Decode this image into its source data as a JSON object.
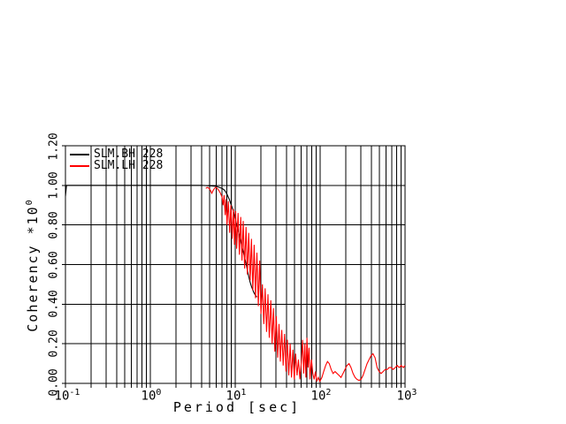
{
  "chart_data": {
    "type": "line",
    "title": "",
    "xlabel": "Period [sec]",
    "ylabel": "Coherency *10^0",
    "ylabel_main": "Coherency *10",
    "ylabel_exp": "0",
    "x_scale": "log",
    "xlim": [
      0.1,
      1000
    ],
    "ylim": [
      0.0,
      1.2
    ],
    "grid": "full log minor grid (x) and major grid (y), black on white",
    "xticks": [
      {
        "base": "10",
        "exp": "-1",
        "value": 0.1
      },
      {
        "base": "10",
        "exp": "0",
        "value": 1
      },
      {
        "base": "10",
        "exp": "1",
        "value": 10
      },
      {
        "base": "10",
        "exp": "2",
        "value": 100
      },
      {
        "base": "10",
        "exp": "3",
        "value": 1000
      }
    ],
    "yticks": [
      {
        "label": "0.00",
        "value": 0.0
      },
      {
        "label": "0.20",
        "value": 0.2
      },
      {
        "label": "0.40",
        "value": 0.4
      },
      {
        "label": "0.60",
        "value": 0.6
      },
      {
        "label": "0.80",
        "value": 0.8
      },
      {
        "label": "1.00",
        "value": 1.0
      },
      {
        "label": "1.20",
        "value": 1.2
      }
    ],
    "legend": {
      "position": "top-left-inside",
      "entries": [
        {
          "label": "SLM.BH 228",
          "color": "#000000"
        },
        {
          "label": "SLM.LH 228",
          "color": "#ff0000"
        }
      ]
    },
    "series": [
      {
        "name": "SLM.BH 228",
        "color": "#000000",
        "points": [
          [
            0.1,
            0.945
          ],
          [
            0.103,
            1.0
          ],
          [
            0.2,
            1.0
          ],
          [
            0.5,
            1.0
          ],
          [
            1,
            1.0
          ],
          [
            2,
            1.0
          ],
          [
            3,
            1.0
          ],
          [
            4,
            1.0
          ],
          [
            5,
            0.998
          ],
          [
            6,
            0.995
          ],
          [
            7,
            0.985
          ],
          [
            7.5,
            0.975
          ],
          [
            8,
            0.955
          ],
          [
            8.5,
            0.93
          ],
          [
            9,
            0.9
          ],
          [
            9.5,
            0.87
          ],
          [
            10,
            0.83
          ],
          [
            10.5,
            0.795
          ],
          [
            11,
            0.76
          ],
          [
            11.5,
            0.725
          ],
          [
            12,
            0.69
          ],
          [
            12.5,
            0.66
          ],
          [
            13,
            0.63
          ],
          [
            13.5,
            0.6
          ],
          [
            14,
            0.565
          ],
          [
            14.5,
            0.535
          ],
          [
            15,
            0.51
          ],
          [
            15.5,
            0.49
          ],
          [
            16,
            0.475
          ],
          [
            16.5,
            0.46
          ],
          [
            17,
            0.45
          ],
          [
            17.5,
            0.442
          ],
          [
            18,
            0.436
          ]
        ]
      },
      {
        "name": "SLM.LH 228",
        "color": "#ff0000",
        "points": [
          [
            4.5,
            0.985
          ],
          [
            4.7,
            0.99
          ],
          [
            4.9,
            0.985
          ],
          [
            5.1,
            0.975
          ],
          [
            5.3,
            0.96
          ],
          [
            5.5,
            0.975
          ],
          [
            5.7,
            0.985
          ],
          [
            5.9,
            0.99
          ],
          [
            6.1,
            0.985
          ],
          [
            6.4,
            0.975
          ],
          [
            6.7,
            0.96
          ],
          [
            7,
            0.94
          ],
          [
            7.2,
            0.9
          ],
          [
            7.4,
            0.95
          ],
          [
            7.6,
            0.85
          ],
          [
            7.8,
            0.93
          ],
          [
            8,
            0.8
          ],
          [
            8.3,
            0.92
          ],
          [
            8.6,
            0.76
          ],
          [
            8.9,
            0.9
          ],
          [
            9.2,
            0.73
          ],
          [
            9.5,
            0.88
          ],
          [
            9.8,
            0.7
          ],
          [
            10.1,
            0.87
          ],
          [
            10.4,
            0.68
          ],
          [
            10.8,
            0.86
          ],
          [
            11.2,
            0.65
          ],
          [
            11.6,
            0.84
          ],
          [
            12,
            0.62
          ],
          [
            12.4,
            0.82
          ],
          [
            12.9,
            0.58
          ],
          [
            13.4,
            0.79
          ],
          [
            13.9,
            0.55
          ],
          [
            14.4,
            0.76
          ],
          [
            15,
            0.52
          ],
          [
            15.5,
            0.73
          ],
          [
            16.1,
            0.47
          ],
          [
            16.7,
            0.7
          ],
          [
            17.3,
            0.43
          ],
          [
            18,
            0.66
          ],
          [
            18.7,
            0.39
          ],
          [
            19.4,
            0.62
          ],
          [
            20.1,
            0.35
          ],
          [
            20.9,
            0.5
          ],
          [
            21.7,
            0.3
          ],
          [
            22.5,
            0.48
          ],
          [
            23.4,
            0.26
          ],
          [
            24.3,
            0.45
          ],
          [
            25.2,
            0.23
          ],
          [
            26.2,
            0.42
          ],
          [
            27.2,
            0.2
          ],
          [
            28.2,
            0.38
          ],
          [
            29.3,
            0.16
          ],
          [
            30.4,
            0.34
          ],
          [
            31.6,
            0.13
          ],
          [
            32.8,
            0.3
          ],
          [
            34,
            0.11
          ],
          [
            35.3,
            0.27
          ],
          [
            36.7,
            0.09
          ],
          [
            38.1,
            0.25
          ],
          [
            39.6,
            0.06
          ],
          [
            41.1,
            0.22
          ],
          [
            42.7,
            0.04
          ],
          [
            44.3,
            0.2
          ],
          [
            46,
            0.03
          ],
          [
            47.8,
            0.17
          ],
          [
            49.6,
            0.02
          ],
          [
            51.5,
            0.15
          ],
          [
            53.5,
            0.04
          ],
          [
            55.6,
            0.12
          ],
          [
            57.7,
            0.02
          ],
          [
            59.9,
            0.1
          ],
          [
            62,
            0.22
          ],
          [
            64,
            0.05
          ],
          [
            66,
            0.2
          ],
          [
            68,
            0.03
          ],
          [
            70,
            0.23
          ],
          [
            72,
            0.08
          ],
          [
            74,
            0.18
          ],
          [
            76,
            0.02
          ],
          [
            79,
            0.12
          ],
          [
            82,
            0.05
          ],
          [
            85,
            0.02
          ],
          [
            88,
            0.06
          ],
          [
            91,
            0.01
          ],
          [
            95,
            0.03
          ],
          [
            99,
            0.01
          ],
          [
            105,
            0.03
          ],
          [
            110,
            0.06
          ],
          [
            116,
            0.09
          ],
          [
            122,
            0.11
          ],
          [
            128,
            0.1
          ],
          [
            135,
            0.07
          ],
          [
            142,
            0.05
          ],
          [
            150,
            0.06
          ],
          [
            158,
            0.05
          ],
          [
            167,
            0.04
          ],
          [
            176,
            0.03
          ],
          [
            186,
            0.05
          ],
          [
            196,
            0.07
          ],
          [
            207,
            0.09
          ],
          [
            219,
            0.1
          ],
          [
            231,
            0.08
          ],
          [
            244,
            0.05
          ],
          [
            258,
            0.03
          ],
          [
            272,
            0.02
          ],
          [
            287,
            0.015
          ],
          [
            303,
            0.02
          ],
          [
            320,
            0.04
          ],
          [
            338,
            0.07
          ],
          [
            357,
            0.1
          ],
          [
            377,
            0.12
          ],
          [
            398,
            0.14
          ],
          [
            420,
            0.15
          ],
          [
            430,
            0.14
          ],
          [
            444,
            0.13
          ],
          [
            469,
            0.08
          ],
          [
            495,
            0.06
          ],
          [
            523,
            0.05
          ],
          [
            552,
            0.06
          ],
          [
            583,
            0.07
          ],
          [
            616,
            0.07
          ],
          [
            650,
            0.08
          ],
          [
            687,
            0.08
          ],
          [
            725,
            0.07
          ],
          [
            766,
            0.08
          ],
          [
            809,
            0.09
          ],
          [
            854,
            0.08
          ],
          [
            902,
            0.09
          ],
          [
            953,
            0.08
          ],
          [
            1000,
            0.09
          ]
        ]
      }
    ]
  }
}
